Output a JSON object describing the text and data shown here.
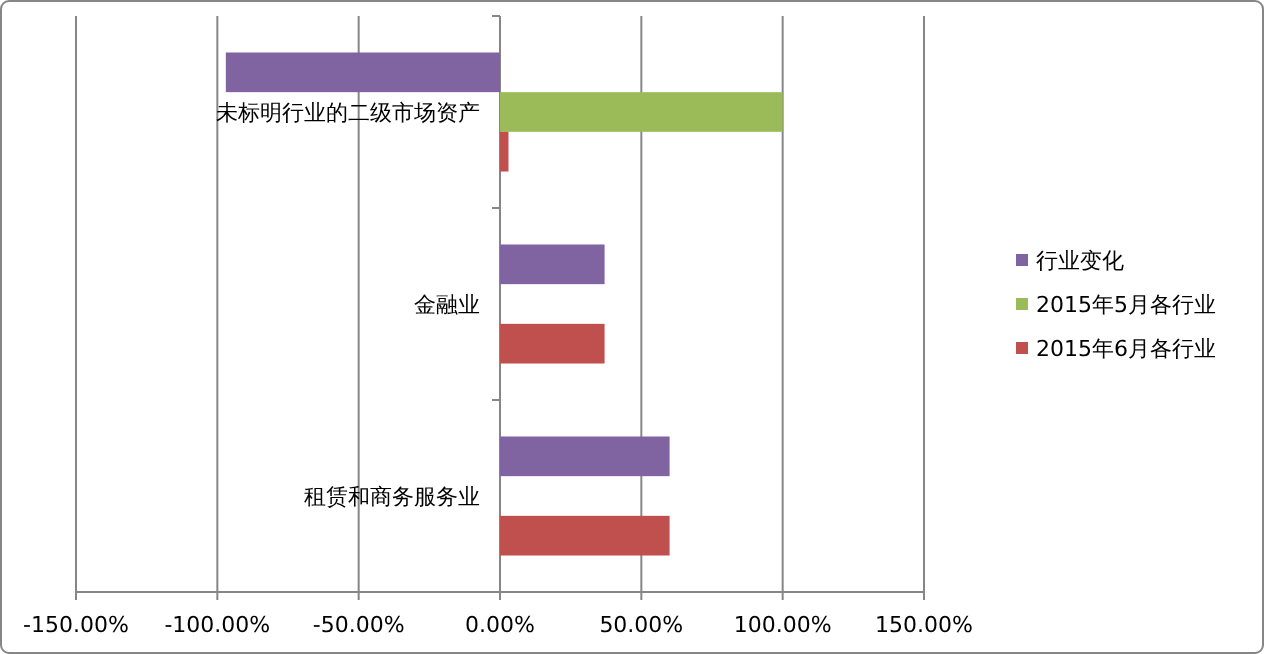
{
  "chart_data": {
    "type": "bar",
    "orientation": "horizontal",
    "categories": [
      "未标明行业的二级市场资产",
      "金融业",
      "租赁和商务服务业"
    ],
    "series": [
      {
        "name": "行业变化",
        "color": "#8064a2",
        "values": [
          -97,
          37,
          60
        ]
      },
      {
        "name": "2015年5月各行业",
        "color": "#9bbb59",
        "values": [
          100,
          null,
          null
        ]
      },
      {
        "name": "2015年6月各行业",
        "color": "#c0504d",
        "values": [
          3,
          37,
          60
        ]
      }
    ],
    "xlim": [
      -150,
      150
    ],
    "xticks": [
      {
        "value": -150,
        "label": "-150.00%"
      },
      {
        "value": -100,
        "label": "-100.00%"
      },
      {
        "value": -50,
        "label": "-50.00%"
      },
      {
        "value": 0,
        "label": "0.00%"
      },
      {
        "value": 50,
        "label": "50.00%"
      },
      {
        "value": 100,
        "label": "100.00%"
      },
      {
        "value": 150,
        "label": "150.00%"
      }
    ],
    "grid": "x",
    "legend": "right"
  }
}
